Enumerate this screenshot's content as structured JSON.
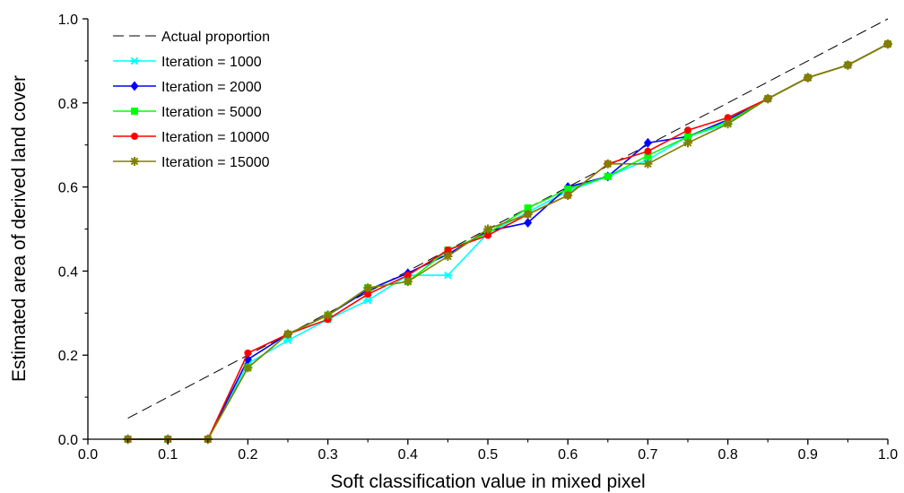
{
  "chart_data": {
    "type": "line",
    "title": "",
    "xlabel": "Soft classification value in mixed pixel",
    "ylabel": "Estimated area of derived land cover",
    "xlim": [
      0.0,
      1.0
    ],
    "ylim": [
      0.0,
      1.0
    ],
    "xticks": [
      0.0,
      0.1,
      0.2,
      0.3,
      0.4,
      0.5,
      0.6,
      0.7,
      0.8,
      0.9,
      1.0
    ],
    "yticks": [
      0.0,
      0.2,
      0.4,
      0.6,
      0.8,
      1.0
    ],
    "xtick_labels": [
      "0.0",
      "0.1",
      "0.2",
      "0.3",
      "0.4",
      "0.5",
      "0.6",
      "0.7",
      "0.8",
      "0.9",
      "1.0"
    ],
    "ytick_labels": [
      "0.0",
      "0.2",
      "0.4",
      "0.6",
      "0.8",
      "1.0"
    ],
    "grid": false,
    "legend_position": "top-left",
    "x": [
      0.05,
      0.1,
      0.15,
      0.2,
      0.25,
      0.3,
      0.35,
      0.4,
      0.45,
      0.5,
      0.55,
      0.6,
      0.65,
      0.7,
      0.75,
      0.8,
      0.85,
      0.9,
      0.95,
      1.0
    ],
    "reference": {
      "name": "Actual proportion",
      "x": [
        0.05,
        1.0
      ],
      "y": [
        0.05,
        1.0
      ],
      "color": "#000000",
      "style": "dashed"
    },
    "series": [
      {
        "name": "Iteration = 1000",
        "color": "#00ffff",
        "marker": "star",
        "values": [
          0.0,
          0.0,
          0.0,
          0.18,
          0.235,
          0.285,
          0.33,
          0.39,
          0.39,
          0.49,
          0.54,
          0.59,
          0.625,
          0.665,
          0.72,
          0.75,
          0.81,
          0.86,
          0.89,
          0.94
        ]
      },
      {
        "name": "Iteration = 2000",
        "color": "#0000ff",
        "marker": "diamond",
        "values": [
          0.0,
          0.0,
          0.0,
          0.19,
          0.25,
          0.295,
          0.355,
          0.395,
          0.44,
          0.495,
          0.515,
          0.6,
          0.625,
          0.705,
          0.72,
          0.76,
          0.81,
          0.86,
          0.89,
          0.94
        ]
      },
      {
        "name": "Iteration = 5000",
        "color": "#00ff00",
        "marker": "square",
        "values": [
          0.0,
          0.0,
          0.0,
          0.17,
          0.25,
          0.295,
          0.36,
          0.375,
          0.45,
          0.49,
          0.55,
          0.595,
          0.625,
          0.675,
          0.72,
          0.755,
          0.81,
          0.86,
          0.89,
          0.94
        ]
      },
      {
        "name": "Iteration = 10000",
        "color": "#ff0000",
        "marker": "circle",
        "values": [
          0.0,
          0.0,
          0.0,
          0.205,
          0.25,
          0.285,
          0.345,
          0.39,
          0.45,
          0.485,
          0.535,
          0.58,
          0.655,
          0.685,
          0.735,
          0.765,
          0.81,
          0.86,
          0.89,
          0.94
        ]
      },
      {
        "name": "Iteration = 15000",
        "color": "#808000",
        "marker": "asterisk",
        "values": [
          0.0,
          0.0,
          0.0,
          0.17,
          0.25,
          0.295,
          0.36,
          0.375,
          0.435,
          0.5,
          0.535,
          0.58,
          0.655,
          0.655,
          0.705,
          0.75,
          0.81,
          0.86,
          0.89,
          0.94
        ]
      }
    ]
  }
}
